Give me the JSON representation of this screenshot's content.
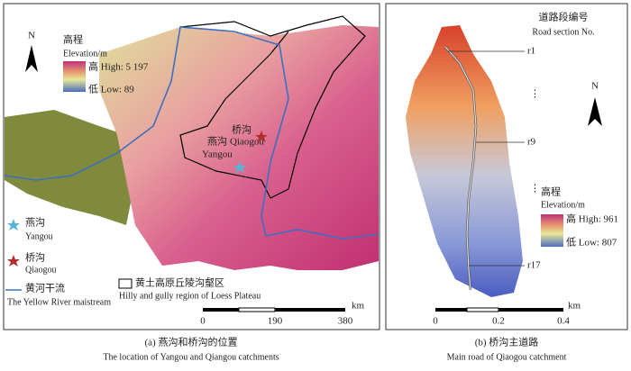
{
  "panel_a": {
    "north": "N",
    "elevation_zh": "高程",
    "elevation_en": "Elevation/m",
    "high": "高 High: 5 197",
    "low": "低 Low: 89",
    "qiaogou_zh": "桥沟",
    "qiaogou_en": "Qiaogou",
    "yangou_zh": "燕沟",
    "yangou_en": "Yangou",
    "legend": {
      "yangou_zh": "燕沟",
      "yangou_en": "Yangou",
      "qiaogou_zh": "桥沟",
      "qiaogou_en": "Qiaogou",
      "river_zh": "黄河干流",
      "river_en": "The Yellow River maistream",
      "region_zh": "黄土高原丘陵沟壑区",
      "region_en": "Hilly and gully region of Loess Plateau"
    },
    "scale": {
      "ticks": [
        "0",
        "190",
        "380"
      ],
      "unit": "km"
    },
    "caption_zh": "(a) 燕沟和桥沟的位置",
    "caption_en": "The location of Yangou and Qiangou catchments"
  },
  "panel_b": {
    "title_zh": "道路段编号",
    "title_en": "Road section No.",
    "sections": [
      "r1",
      "⋮",
      "r9",
      "⋮",
      "r17"
    ],
    "north": "N",
    "elevation_zh": "高程",
    "elevation_en": "Elevation/m",
    "high": "高 High: 961",
    "low": "低 Low: 807",
    "scale": {
      "ticks": [
        "0",
        "0.2",
        "0.4"
      ],
      "unit": "km"
    },
    "caption_zh": "(b) 桥沟主道路",
    "caption_en": "Main road of Qiaogou catchment"
  }
}
